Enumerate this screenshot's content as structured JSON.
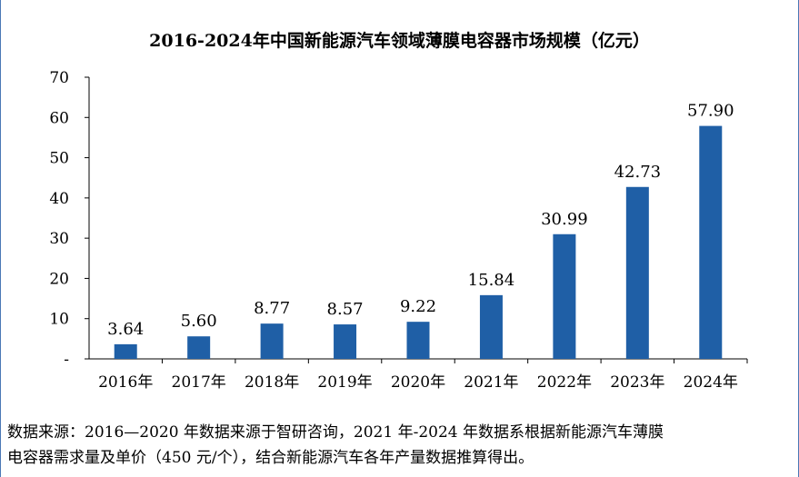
{
  "chart_data": {
    "type": "bar",
    "title": "2016-2024年中国新能源汽车领域薄膜电容器市场规模（亿元）",
    "categories": [
      "2016年",
      "2017年",
      "2018年",
      "2019年",
      "2020年",
      "2021年",
      "2022年",
      "2023年",
      "2024年"
    ],
    "values": [
      3.64,
      5.6,
      8.77,
      8.57,
      9.22,
      15.84,
      30.99,
      42.73,
      57.9
    ],
    "value_labels": [
      "3.64",
      "5.60",
      "8.77",
      "8.57",
      "9.22",
      "15.84",
      "30.99",
      "42.73",
      "57.90"
    ],
    "ylim": [
      0,
      70
    ],
    "yticks": [
      0,
      10,
      20,
      30,
      40,
      50,
      60,
      70
    ],
    "ytick_labels": [
      "-",
      "10",
      "20",
      "30",
      "40",
      "50",
      "60",
      "70"
    ],
    "xlabel": "",
    "ylabel": "",
    "bar_color": "#1f5fa6",
    "grid": false
  },
  "note": {
    "line1": "数据来源：2016—2020 年数据来源于智研咨询，2021 年-2024 年数据系根据新能源汽车薄膜",
    "line2": "电容器需求量及单价（450 元/个），结合新能源汽车各年产量数据推算得出。"
  }
}
